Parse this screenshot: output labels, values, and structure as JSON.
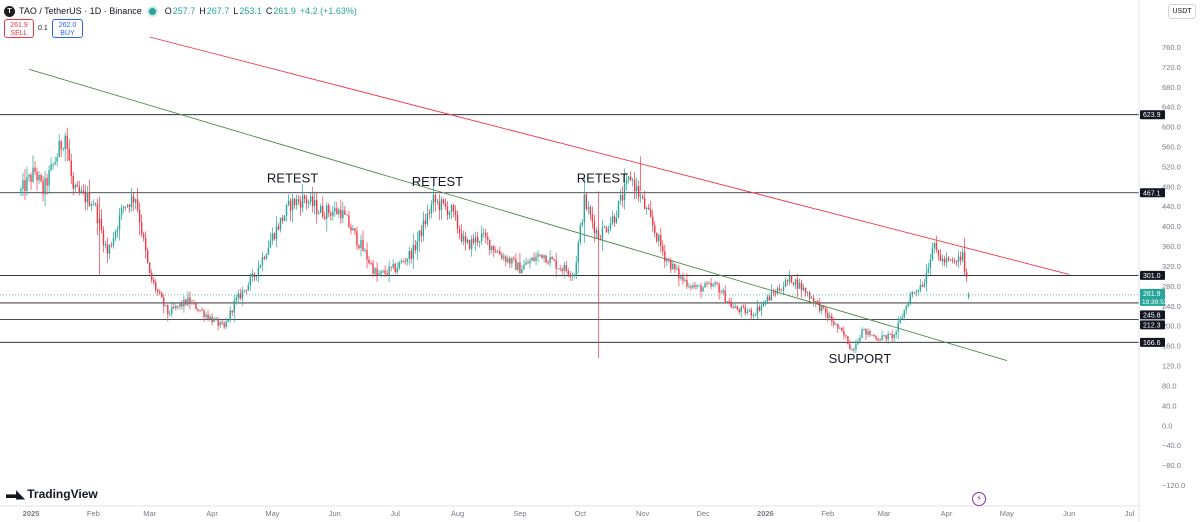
{
  "header": {
    "symbol_badge": "T",
    "title": "TAO / TetherUS · 1D · Binance",
    "open_label": "O",
    "open": "257.7",
    "high_label": "H",
    "high": "267.7",
    "low_label": "L",
    "low": "253.1",
    "close_label": "C",
    "close": "261.9",
    "change": "+4.2 (+1.63%)"
  },
  "trade": {
    "sell_price": "261.9",
    "sell_label": "SELL",
    "spread": "0.1",
    "buy_price": "262.0",
    "buy_label": "BUY"
  },
  "currency_button": "USDT",
  "logo_text": "TradingView",
  "colors": {
    "up": "#26a69a",
    "down": "#f23645",
    "resistance_line": "#f23645",
    "support_trendline": "#4c8c45",
    "level_line": "#131722"
  },
  "chart_data": {
    "type": "candlestick",
    "y_axis": {
      "range": [
        -120,
        780
      ],
      "ticks": [
        "760.0",
        "720.0",
        "680.0",
        "640.0",
        "600.0",
        "560.0",
        "520.0",
        "480.0",
        "440.0",
        "400.0",
        "360.0",
        "320.0",
        "280.0",
        "240.0",
        "200.0",
        "160.0",
        "120.0",
        "80.0",
        "40.0",
        "0.0",
        "−40.0",
        "−80.0",
        "−120.0"
      ]
    },
    "x_axis": {
      "ticks": [
        {
          "label": "2025",
          "date": "2025-01-01"
        },
        {
          "label": "Feb",
          "date": "2025-02-01"
        },
        {
          "label": "Mar",
          "date": "2025-03-01"
        },
        {
          "label": "Apr",
          "date": "2025-04-01"
        },
        {
          "label": "May",
          "date": "2025-05-01"
        },
        {
          "label": "Jun",
          "date": "2025-06-01"
        },
        {
          "label": "Jul",
          "date": "2025-07-01"
        },
        {
          "label": "Aug",
          "date": "2025-08-01"
        },
        {
          "label": "Sep",
          "date": "2025-09-01"
        },
        {
          "label": "Oct",
          "date": "2025-10-01"
        },
        {
          "label": "Nov",
          "date": "2025-11-01"
        },
        {
          "label": "Dec",
          "date": "2025-12-01"
        },
        {
          "label": "2026",
          "date": "2026-01-01"
        },
        {
          "label": "Feb",
          "date": "2026-02-01"
        },
        {
          "label": "Mar",
          "date": "2026-03-01"
        },
        {
          "label": "Apr",
          "date": "2026-04-01"
        },
        {
          "label": "May",
          "date": "2026-05-01"
        },
        {
          "label": "Jun",
          "date": "2026-06-01"
        },
        {
          "label": "Jul",
          "date": "2026-07-01"
        }
      ]
    },
    "price_path": [
      {
        "date": "2024-12-27",
        "price": 470
      },
      {
        "date": "2025-01-03",
        "price": 510
      },
      {
        "date": "2025-01-07",
        "price": 470
      },
      {
        "date": "2025-01-18",
        "price": 585
      },
      {
        "date": "2025-01-22",
        "price": 470
      },
      {
        "date": "2025-02-01",
        "price": 450
      },
      {
        "date": "2025-02-08",
        "price": 345
      },
      {
        "date": "2025-02-16",
        "price": 440
      },
      {
        "date": "2025-02-22",
        "price": 460
      },
      {
        "date": "2025-03-01",
        "price": 300
      },
      {
        "date": "2025-03-10",
        "price": 225
      },
      {
        "date": "2025-03-20",
        "price": 250
      },
      {
        "date": "2025-03-28",
        "price": 225
      },
      {
        "date": "2025-04-07",
        "price": 195
      },
      {
        "date": "2025-04-12",
        "price": 245
      },
      {
        "date": "2025-04-22",
        "price": 300
      },
      {
        "date": "2025-05-01",
        "price": 380
      },
      {
        "date": "2025-05-10",
        "price": 445
      },
      {
        "date": "2025-05-17",
        "price": 455
      },
      {
        "date": "2025-05-25",
        "price": 430
      },
      {
        "date": "2025-06-04",
        "price": 430
      },
      {
        "date": "2025-06-14",
        "price": 360
      },
      {
        "date": "2025-06-22",
        "price": 300
      },
      {
        "date": "2025-07-01",
        "price": 315
      },
      {
        "date": "2025-07-10",
        "price": 350
      },
      {
        "date": "2025-07-20",
        "price": 450
      },
      {
        "date": "2025-07-29",
        "price": 430
      },
      {
        "date": "2025-08-05",
        "price": 360
      },
      {
        "date": "2025-08-13",
        "price": 380
      },
      {
        "date": "2025-08-22",
        "price": 345
      },
      {
        "date": "2025-09-01",
        "price": 315
      },
      {
        "date": "2025-09-12",
        "price": 345
      },
      {
        "date": "2025-09-20",
        "price": 320
      },
      {
        "date": "2025-09-28",
        "price": 305
      },
      {
        "date": "2025-10-03",
        "price": 450
      },
      {
        "date": "2025-10-10",
        "price": 380
      },
      {
        "date": "2025-10-18",
        "price": 420
      },
      {
        "date": "2025-10-26",
        "price": 500
      },
      {
        "date": "2025-11-04",
        "price": 420
      },
      {
        "date": "2025-11-12",
        "price": 340
      },
      {
        "date": "2025-11-20",
        "price": 295
      },
      {
        "date": "2025-11-28",
        "price": 275
      },
      {
        "date": "2025-12-08",
        "price": 280
      },
      {
        "date": "2025-12-16",
        "price": 235
      },
      {
        "date": "2025-12-26",
        "price": 225
      },
      {
        "date": "2026-01-05",
        "price": 265
      },
      {
        "date": "2026-01-14",
        "price": 295
      },
      {
        "date": "2026-01-22",
        "price": 265
      },
      {
        "date": "2026-02-02",
        "price": 215
      },
      {
        "date": "2026-02-10",
        "price": 175
      },
      {
        "date": "2026-02-13",
        "price": 150
      },
      {
        "date": "2026-02-18",
        "price": 190
      },
      {
        "date": "2026-02-26",
        "price": 175
      },
      {
        "date": "2026-03-06",
        "price": 180
      },
      {
        "date": "2026-03-14",
        "price": 260
      },
      {
        "date": "2026-03-21",
        "price": 290
      },
      {
        "date": "2026-03-25",
        "price": 360
      },
      {
        "date": "2026-03-30",
        "price": 330
      },
      {
        "date": "2026-04-05",
        "price": 325
      },
      {
        "date": "2026-04-09",
        "price": 340
      },
      {
        "date": "2026-04-12",
        "price": 261.9
      }
    ],
    "horizontal_levels": [
      623.9,
      467.1,
      301.0,
      245.8,
      212.3,
      166.6
    ],
    "trendlines": [
      {
        "name": "resistance",
        "color": "#f23645",
        "from": {
          "date": "2025-03-01",
          "price": 780
        },
        "to": {
          "date": "2026-06-01",
          "price": 303
        }
      },
      {
        "name": "support",
        "color": "#4c8c45",
        "from": {
          "date": "2024-12-31",
          "price": 715
        },
        "to": {
          "date": "2026-05-01",
          "price": 130
        }
      }
    ],
    "annotations": [
      {
        "text": "RETEST",
        "date": "2025-05-11",
        "price": 488
      },
      {
        "text": "RETEST",
        "date": "2025-07-22",
        "price": 481
      },
      {
        "text": "RETEST",
        "date": "2025-10-12",
        "price": 488
      },
      {
        "text": "SUPPORT",
        "date": "2026-02-17",
        "price": 125
      }
    ],
    "price_labels": [
      {
        "value": "623.9"
      },
      {
        "value": "467.1"
      },
      {
        "value": "301.0"
      },
      {
        "value": "261.9",
        "sub": "19:39:53",
        "kind": "current"
      },
      {
        "value": "245.8"
      },
      {
        "value": "212.3"
      },
      {
        "value": "166.6"
      }
    ]
  }
}
